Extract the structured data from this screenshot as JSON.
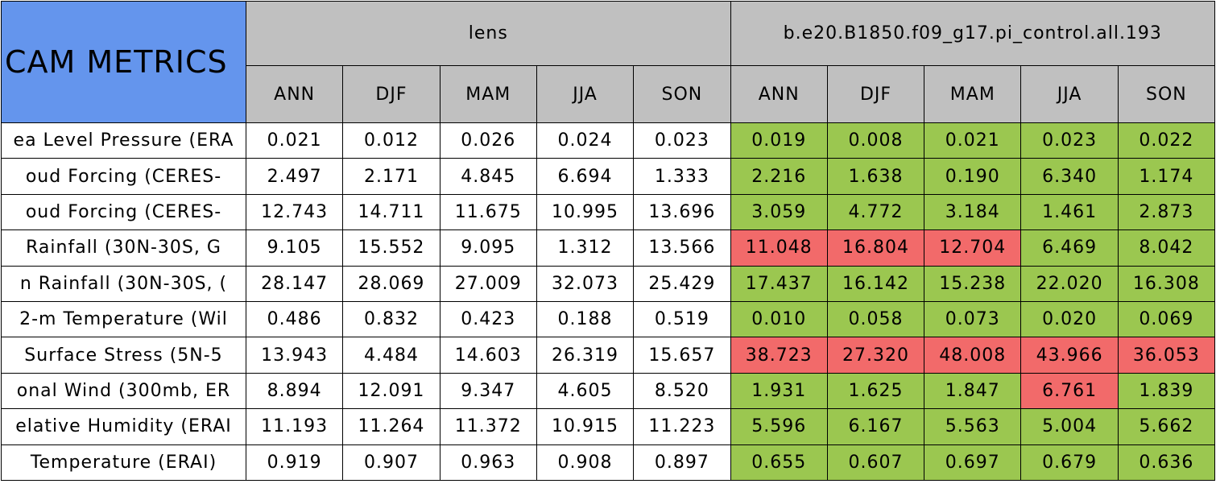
{
  "table": {
    "title": "CAM METRICS",
    "groups": [
      "lens",
      "b.e20.B1850.f09_g17.pi_control.all.193"
    ],
    "seasons": [
      [
        "ANN",
        "DJF",
        "MAM",
        "JJA",
        "SON"
      ],
      [
        "ANN",
        "DJF",
        "MAM",
        "JJA",
        "SON"
      ]
    ],
    "header_color": "#c0c0c0",
    "title_color": "#6495ed",
    "rows": [
      {
        "label": "ea Level Pressure (ERA",
        "cells": [
          [
            "0.021",
            "0.012",
            "0.026",
            "0.024",
            "0.023"
          ],
          [
            "0.019",
            "0.008",
            "0.021",
            "0.023",
            "0.022"
          ]
        ],
        "colors": [
          [
            "#ffffff",
            "#ffffff",
            "#ffffff",
            "#ffffff",
            "#ffffff"
          ],
          [
            "#9bc750",
            "#9bc750",
            "#9bc750",
            "#9bc750",
            "#9bc750"
          ]
        ]
      },
      {
        "label": "oud Forcing (CERES-",
        "cells": [
          [
            "2.497",
            "2.171",
            "4.845",
            "6.694",
            "1.333"
          ],
          [
            "2.216",
            "1.638",
            "0.190",
            "6.340",
            "1.174"
          ]
        ],
        "colors": [
          [
            "#ffffff",
            "#ffffff",
            "#ffffff",
            "#ffffff",
            "#ffffff"
          ],
          [
            "#9bc750",
            "#9bc750",
            "#9bc750",
            "#9bc750",
            "#9bc750"
          ]
        ]
      },
      {
        "label": "oud Forcing (CERES-",
        "cells": [
          [
            "12.743",
            "14.711",
            "11.675",
            "10.995",
            "13.696"
          ],
          [
            "3.059",
            "4.772",
            "3.184",
            "1.461",
            "2.873"
          ]
        ],
        "colors": [
          [
            "#ffffff",
            "#ffffff",
            "#ffffff",
            "#ffffff",
            "#ffffff"
          ],
          [
            "#9bc750",
            "#9bc750",
            "#9bc750",
            "#9bc750",
            "#9bc750"
          ]
        ]
      },
      {
        "label": "Rainfall (30N-30S, G",
        "cells": [
          [
            "9.105",
            "15.552",
            "9.095",
            "1.312",
            "13.566"
          ],
          [
            "11.048",
            "16.804",
            "12.704",
            "6.469",
            "8.042"
          ]
        ],
        "colors": [
          [
            "#ffffff",
            "#ffffff",
            "#ffffff",
            "#ffffff",
            "#ffffff"
          ],
          [
            "#f26a6a",
            "#f26a6a",
            "#f26a6a",
            "#9bc750",
            "#9bc750"
          ]
        ]
      },
      {
        "label": "n Rainfall (30N-30S, (",
        "cells": [
          [
            "28.147",
            "28.069",
            "27.009",
            "32.073",
            "25.429"
          ],
          [
            "17.437",
            "16.142",
            "15.238",
            "22.020",
            "16.308"
          ]
        ],
        "colors": [
          [
            "#ffffff",
            "#ffffff",
            "#ffffff",
            "#ffffff",
            "#ffffff"
          ],
          [
            "#9bc750",
            "#9bc750",
            "#9bc750",
            "#9bc750",
            "#9bc750"
          ]
        ]
      },
      {
        "label": "2-m Temperature (Wil",
        "cells": [
          [
            "0.486",
            "0.832",
            "0.423",
            "0.188",
            "0.519"
          ],
          [
            "0.010",
            "0.058",
            "0.073",
            "0.020",
            "0.069"
          ]
        ],
        "colors": [
          [
            "#ffffff",
            "#ffffff",
            "#ffffff",
            "#ffffff",
            "#ffffff"
          ],
          [
            "#9bc750",
            "#9bc750",
            "#9bc750",
            "#9bc750",
            "#9bc750"
          ]
        ]
      },
      {
        "label": "Surface Stress (5N-5",
        "cells": [
          [
            "13.943",
            "4.484",
            "14.603",
            "26.319",
            "15.657"
          ],
          [
            "38.723",
            "27.320",
            "48.008",
            "43.966",
            "36.053"
          ]
        ],
        "colors": [
          [
            "#ffffff",
            "#ffffff",
            "#ffffff",
            "#ffffff",
            "#ffffff"
          ],
          [
            "#f26a6a",
            "#f26a6a",
            "#f26a6a",
            "#f26a6a",
            "#f26a6a"
          ]
        ]
      },
      {
        "label": "onal Wind (300mb, ER",
        "cells": [
          [
            "8.894",
            "12.091",
            "9.347",
            "4.605",
            "8.520"
          ],
          [
            "1.931",
            "1.625",
            "1.847",
            "6.761",
            "1.839"
          ]
        ],
        "colors": [
          [
            "#ffffff",
            "#ffffff",
            "#ffffff",
            "#ffffff",
            "#ffffff"
          ],
          [
            "#9bc750",
            "#9bc750",
            "#9bc750",
            "#f26a6a",
            "#9bc750"
          ]
        ]
      },
      {
        "label": "elative Humidity (ERAI",
        "cells": [
          [
            "11.193",
            "11.264",
            "11.372",
            "10.915",
            "11.223"
          ],
          [
            "5.596",
            "6.167",
            "5.563",
            "5.004",
            "5.662"
          ]
        ],
        "colors": [
          [
            "#ffffff",
            "#ffffff",
            "#ffffff",
            "#ffffff",
            "#ffffff"
          ],
          [
            "#9bc750",
            "#9bc750",
            "#9bc750",
            "#9bc750",
            "#9bc750"
          ]
        ]
      },
      {
        "label": "Temperature (ERAI)",
        "cells": [
          [
            "0.919",
            "0.907",
            "0.963",
            "0.908",
            "0.897"
          ],
          [
            "0.655",
            "0.607",
            "0.697",
            "0.679",
            "0.636"
          ]
        ],
        "colors": [
          [
            "#ffffff",
            "#ffffff",
            "#ffffff",
            "#ffffff",
            "#ffffff"
          ],
          [
            "#9bc750",
            "#9bc750",
            "#9bc750",
            "#9bc750",
            "#9bc750"
          ]
        ]
      }
    ]
  }
}
